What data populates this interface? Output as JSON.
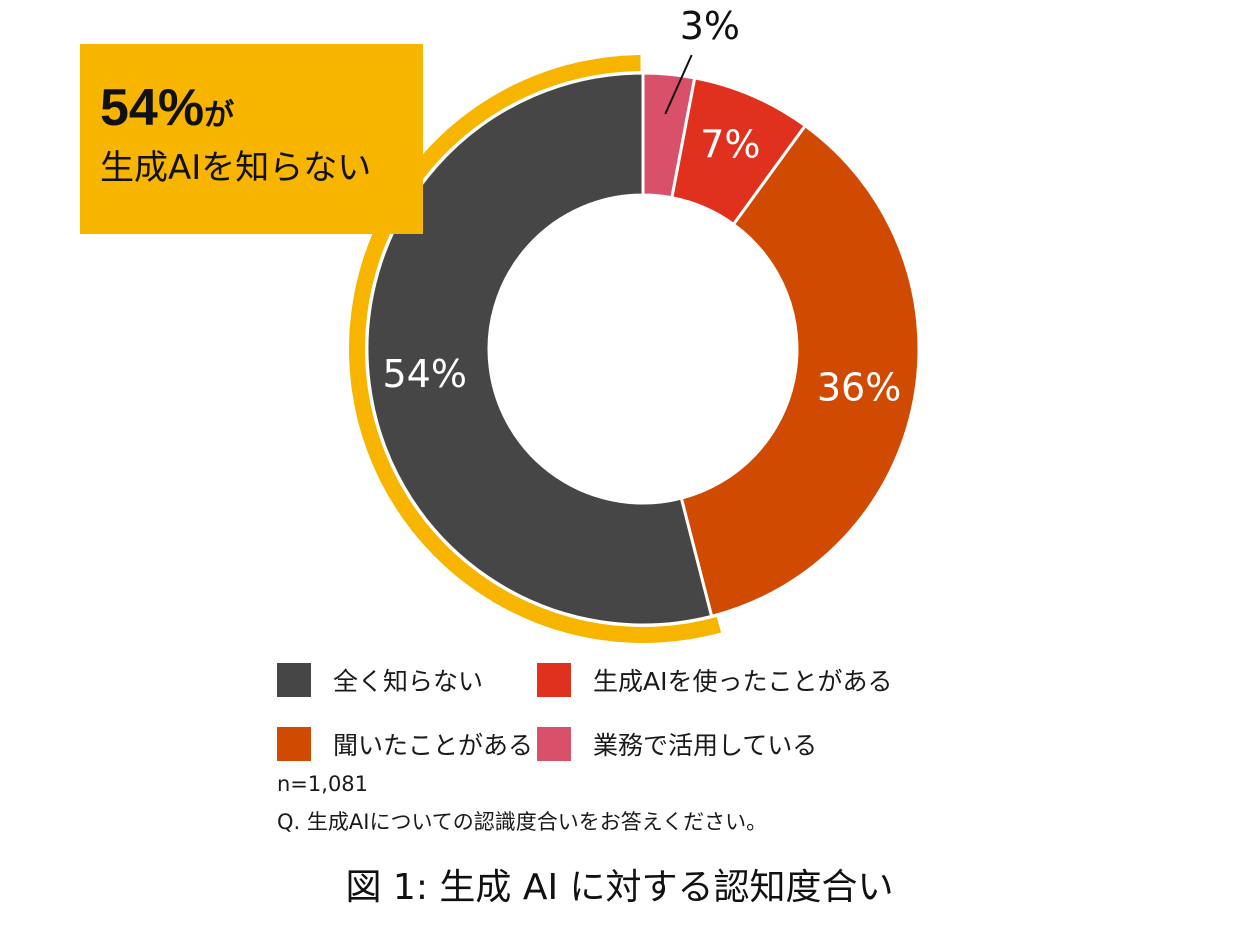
{
  "callout": {
    "percent": "54%",
    "particle": "が",
    "line2": "生成AIを知らない",
    "color": "#f7b500"
  },
  "chart_data": {
    "type": "pie",
    "style": "donut",
    "slices": [
      {
        "label": "業務で活用している",
        "value": 3,
        "display": "3%",
        "color": "#d9506a"
      },
      {
        "label": "生成AIを使ったことがある",
        "value": 7,
        "display": "7%",
        "color": "#e0301e"
      },
      {
        "label": "聞いたことがある",
        "value": 36,
        "display": "36%",
        "color": "#d04a02"
      },
      {
        "label": "全く知らない",
        "value": 54,
        "display": "54%",
        "color": "#464646"
      }
    ],
    "highlight_slice": "全く知らない",
    "highlight_color": "#f7b500",
    "legend": [
      {
        "label": "全く知らない",
        "color": "#464646"
      },
      {
        "label": "生成AIを使ったことがある",
        "color": "#e0301e"
      },
      {
        "label": "聞いたことがある",
        "color": "#d04a02"
      },
      {
        "label": "業務で活用している",
        "color": "#d9506a"
      }
    ]
  },
  "notes": {
    "sample": "n=1,081",
    "question": "Q. 生成AIについての認識度合いをお答えください。"
  },
  "caption": "図 1: 生成 AI に対する認知度合い"
}
